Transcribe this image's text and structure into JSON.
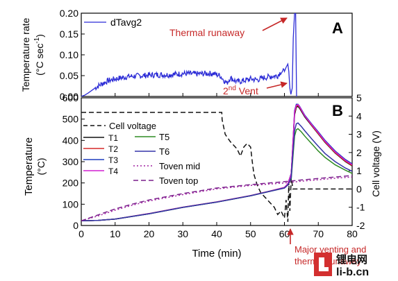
{
  "chart_data": [
    {
      "panel_label": "A",
      "type": "line",
      "ylabel": "Temperature rate (°C sec⁻¹)",
      "ylabel_line1": "Temperature rate",
      "ylabel_line2": "(°C sec",
      "ylabel_sup": "-1",
      "ylabel_close": ")",
      "ylim": [
        0,
        0.2
      ],
      "xlim": [
        0,
        80
      ],
      "yticks": [
        "0.00",
        "0.05",
        "0.10",
        "0.15",
        "0.20"
      ],
      "yticks_values": [
        0,
        0.05,
        0.1,
        0.15,
        0.2
      ],
      "series": [
        {
          "name": "dTavg2",
          "color": "#2b2bd6",
          "x": [
            0,
            1,
            2,
            4,
            6,
            8,
            10,
            14,
            18,
            22,
            26,
            30,
            34,
            37,
            39,
            41,
            42,
            43,
            44,
            46,
            48,
            50,
            52,
            54,
            56,
            58,
            59,
            60,
            60.5,
            61,
            61.3,
            61.6,
            61.9,
            62.3,
            62.6,
            63.0,
            63.3,
            63.6
          ],
          "y": [
            0.0,
            0.003,
            0.008,
            0.02,
            0.03,
            0.038,
            0.042,
            0.048,
            0.05,
            0.052,
            0.052,
            0.055,
            0.054,
            0.055,
            0.055,
            0.05,
            0.04,
            0.032,
            0.045,
            0.035,
            0.038,
            0.042,
            0.04,
            0.045,
            0.048,
            0.05,
            0.06,
            0.06,
            0.07,
            0.078,
            0.06,
            0.02,
            0.005,
            0.02,
            0.14,
            0.2,
            0.2,
            -0.02
          ]
        }
      ],
      "annotations": [
        {
          "text": "Thermal runaway",
          "color": "#c62828",
          "x": 63.3,
          "y": 0.2
        },
        {
          "text": "2nd Vent",
          "text_base": "2",
          "text_sup": "nd",
          "text_rest": " Vent",
          "color": "#c62828",
          "x": 61.6,
          "y": 0.005
        }
      ]
    },
    {
      "panel_label": "B",
      "type": "line",
      "xlabel": "Time (min)",
      "ylabel": "Temperature (°C)",
      "ylabel_line1": "Temperature",
      "ylabel_line2": "(°C)",
      "ylabel_right": "Cell voltage (V)",
      "xlim": [
        0,
        80
      ],
      "ylim": [
        0,
        600
      ],
      "ylim_right": [
        -2,
        5
      ],
      "xticks": [
        "0",
        "10",
        "20",
        "30",
        "40",
        "50",
        "60",
        "70",
        "80"
      ],
      "xticks_values": [
        0,
        10,
        20,
        30,
        40,
        50,
        60,
        70,
        80
      ],
      "yticks": [
        "0",
        "100",
        "200",
        "300",
        "400",
        "500",
        "600"
      ],
      "yticks_values": [
        0,
        100,
        200,
        300,
        400,
        500,
        600
      ],
      "yticks_right": [
        "-2",
        "-1",
        "0",
        "1",
        "2",
        "3",
        "4",
        "5"
      ],
      "yticks_right_values": [
        -2,
        -1,
        0,
        1,
        2,
        3,
        4,
        5
      ],
      "series": [
        {
          "name": "Cell voltage",
          "axis": "right",
          "color": "#111111",
          "style": "dash",
          "x": [
            0,
            10,
            20,
            30,
            40,
            41.5,
            41.6,
            42.5,
            44,
            46,
            47,
            48,
            48.5,
            49,
            50,
            50.5,
            51,
            52,
            53,
            55,
            57,
            58,
            59,
            60,
            60.5,
            61,
            61.3,
            61.6,
            62,
            62.5,
            64,
            70,
            80
          ],
          "y": [
            4.2,
            4.2,
            4.2,
            4.2,
            4.2,
            4.2,
            3.8,
            3.0,
            2.6,
            2.2,
            1.8,
            2.3,
            2.4,
            2.5,
            2.3,
            1.5,
            0.8,
            0.2,
            -0.2,
            -0.6,
            -1.0,
            -1.4,
            -1.2,
            -1.6,
            -0.6,
            -1.8,
            0.4,
            -1.2,
            0.6,
            0.0,
            0.0,
            0.0,
            0.0
          ]
        },
        {
          "name": "T1",
          "color": "#111111",
          "x": [
            0,
            5,
            10,
            20,
            30,
            40,
            50,
            55,
            60,
            61,
            62,
            62.5,
            63,
            63.5,
            64,
            64.5,
            66,
            68,
            70,
            72,
            75,
            78,
            80
          ],
          "y": [
            22,
            24,
            30,
            55,
            85,
            110,
            140,
            158,
            178,
            195,
            240,
            380,
            520,
            555,
            560,
            550,
            510,
            470,
            430,
            390,
            340,
            300,
            280
          ]
        },
        {
          "name": "T2",
          "color": "#d62828",
          "x": [
            0,
            5,
            10,
            20,
            30,
            40,
            50,
            55,
            60,
            61,
            62,
            62.5,
            63,
            63.5,
            64,
            64.5,
            66,
            68,
            70,
            72,
            75,
            78,
            80
          ],
          "y": [
            22,
            24,
            30,
            56,
            86,
            111,
            141,
            159,
            179,
            196,
            245,
            390,
            530,
            560,
            565,
            555,
            515,
            472,
            432,
            392,
            342,
            302,
            282
          ]
        },
        {
          "name": "T3",
          "color": "#1f3fbf",
          "x": [
            0,
            5,
            10,
            20,
            30,
            40,
            50,
            55,
            60,
            61,
            62,
            62.5,
            63,
            63.5,
            64,
            64.5,
            66,
            68,
            70,
            72,
            75,
            78,
            80
          ],
          "y": [
            22,
            24,
            30,
            55,
            85,
            110,
            140,
            158,
            178,
            195,
            245,
            380,
            540,
            570,
            570,
            560,
            518,
            478,
            440,
            400,
            350,
            310,
            290
          ]
        },
        {
          "name": "T4",
          "color": "#d01ed0",
          "x": [
            0,
            5,
            10,
            20,
            30,
            40,
            50,
            55,
            60,
            61,
            62,
            62.5,
            63,
            63.5,
            64,
            64.5,
            66,
            68,
            70,
            72,
            75,
            78,
            80
          ],
          "y": [
            22,
            24,
            30,
            56,
            86,
            111,
            141,
            159,
            179,
            196,
            242,
            385,
            535,
            565,
            568,
            558,
            515,
            475,
            436,
            396,
            346,
            306,
            286
          ]
        },
        {
          "name": "T5",
          "color": "#2e8b22",
          "x": [
            0,
            5,
            10,
            20,
            30,
            40,
            50,
            55,
            60,
            61,
            62,
            62.5,
            63,
            63.5,
            64,
            65,
            66,
            68,
            70,
            72,
            75,
            78,
            80
          ],
          "y": [
            22,
            24,
            30,
            55,
            85,
            110,
            140,
            158,
            176,
            190,
            220,
            320,
            420,
            450,
            455,
            440,
            420,
            385,
            350,
            320,
            285,
            260,
            245
          ]
        },
        {
          "name": "T6",
          "color": "#3434a8",
          "x": [
            0,
            5,
            10,
            20,
            30,
            40,
            50,
            55,
            60,
            61,
            62,
            62.5,
            63,
            63.5,
            64,
            65,
            66,
            68,
            70,
            72,
            75,
            78,
            80
          ],
          "y": [
            22,
            24,
            30,
            55,
            85,
            110,
            140,
            158,
            176,
            190,
            225,
            340,
            445,
            478,
            482,
            465,
            445,
            408,
            372,
            338,
            300,
            270,
            255
          ]
        },
        {
          "name": "Toven mid",
          "color": "#a020a0",
          "style": "dot",
          "x": [
            0,
            5,
            10,
            15,
            20,
            30,
            40,
            50,
            60,
            65,
            70,
            75,
            80
          ],
          "y": [
            22,
            45,
            72,
            95,
            115,
            145,
            172,
            188,
            200,
            208,
            215,
            222,
            228
          ]
        },
        {
          "name": "Toven top",
          "color": "#7a1f8c",
          "style": "dash",
          "x": [
            0,
            5,
            10,
            15,
            20,
            30,
            40,
            50,
            60,
            65,
            70,
            75,
            80
          ],
          "y": [
            22,
            50,
            78,
            100,
            120,
            150,
            176,
            192,
            206,
            214,
            221,
            228,
            235
          ]
        }
      ],
      "legend_position": "left",
      "annotation": {
        "text_line1": "Major venting and",
        "text_line2": "thermal runaway",
        "color": "#c62828",
        "x": 62
      }
    }
  ],
  "watermark": {
    "brand": "锂电网",
    "site": "li-b.cn"
  }
}
